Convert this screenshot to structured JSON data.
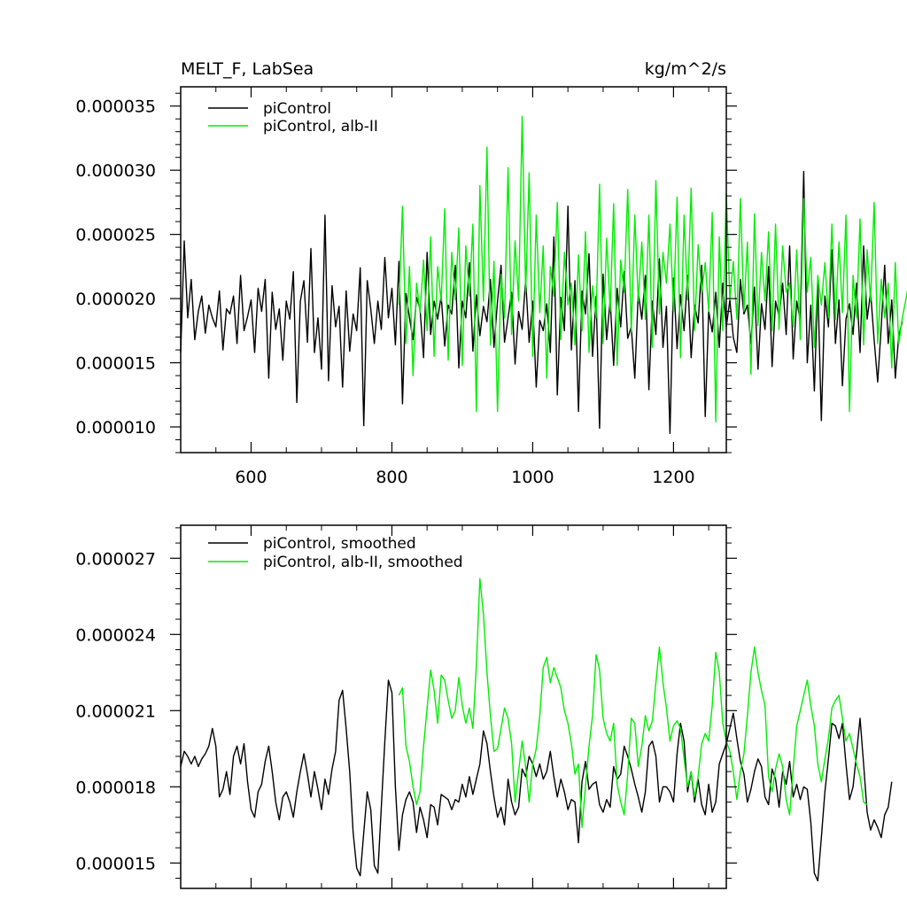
{
  "chart_data": [
    {
      "type": "line",
      "title": "MELT_F, LabSea",
      "units": "kg/m^2/s",
      "xlim": [
        500,
        1275
      ],
      "ylim": [
        8e-06,
        3.65e-05
      ],
      "xticks": [
        600,
        800,
        1000,
        1200
      ],
      "xtick_labels": [
        "600",
        "800",
        "1000",
        "1200"
      ],
      "yticks": [
        1e-05,
        1.5e-05,
        2e-05,
        2.5e-05,
        3e-05,
        3.5e-05
      ],
      "ytick_labels": [
        "0.000010",
        "0.000015",
        "0.000020",
        "0.000025",
        "0.000030",
        "0.000035"
      ],
      "grid": false,
      "legend": "top-left",
      "series": [
        {
          "name": "piControl",
          "color": "#000000",
          "x_start": 500,
          "step": 5,
          "values": [
            1.58e-05,
            2.45e-05,
            1.85e-05,
            2.15e-05,
            1.68e-05,
            1.9e-05,
            2.02e-05,
            1.73e-05,
            1.95e-05,
            1.85e-05,
            1.78e-05,
            2.06e-05,
            1.6e-05,
            1.92e-05,
            1.88e-05,
            2.02e-05,
            1.65e-05,
            2.18e-05,
            1.75e-05,
            1.86e-05,
            1.99e-05,
            1.58e-05,
            2.08e-05,
            1.9e-05,
            2.15e-05,
            1.38e-05,
            2.05e-05,
            1.76e-05,
            1.92e-05,
            1.52e-05,
            1.98e-05,
            1.84e-05,
            2.21e-05,
            1.19e-05,
            1.98e-05,
            2.14e-05,
            1.66e-05,
            2.39e-05,
            1.58e-05,
            1.85e-05,
            1.45e-05,
            2.65e-05,
            1.36e-05,
            2.1e-05,
            1.78e-05,
            1.94e-05,
            1.31e-05,
            2.06e-05,
            1.59e-05,
            1.88e-05,
            1.75e-05,
            2.24e-05,
            1.01e-05,
            2.14e-05,
            1.92e-05,
            1.65e-05,
            1.98e-05,
            1.76e-05,
            2.32e-05,
            1.85e-05,
            2.08e-05,
            1.64e-05,
            2.29e-05,
            1.18e-05,
            2.04e-05,
            1.85e-05,
            1.68e-05,
            2.01e-05,
            1.92e-05,
            1.54e-05,
            2.36e-05,
            1.72e-05,
            1.98e-05,
            1.84e-05,
            2.02e-05,
            1.63e-05,
            1.95e-05,
            1.88e-05,
            2.26e-05,
            1.46e-05,
            1.98e-05,
            1.85e-05,
            2.28e-05,
            1.59e-05,
            2.03e-05,
            1.71e-05,
            1.94e-05,
            1.82e-05,
            2.15e-05,
            1.62e-05,
            1.98e-05,
            2.26e-05,
            1.66e-05,
            1.85e-05,
            2.05e-05,
            1.49e-05,
            1.9e-05,
            1.76e-05,
            2.15e-05,
            1.66e-05,
            1.98e-05,
            1.31e-05,
            1.83e-05,
            1.75e-05,
            1.96e-05,
            1.58e-05,
            2.48e-05,
            1.25e-05,
            2.01e-05,
            1.75e-05,
            2.72e-05,
            1.6e-05,
            2.14e-05,
            1.12e-05,
            2.06e-05,
            1.88e-05,
            2.35e-05,
            1.55e-05,
            2.02e-05,
            9.9e-06,
            2.19e-05,
            1.68e-05,
            1.99e-05,
            1.48e-05,
            2.08e-05,
            1.78e-05,
            2.21e-05,
            1.69e-05,
            1.78e-05,
            1.38e-05,
            2.05e-05,
            1.84e-05,
            2.18e-05,
            1.29e-05,
            1.98e-05,
            1.72e-05,
            2.31e-05,
            1.62e-05,
            1.94e-05,
            9.5e-06,
            2.16e-05,
            1.61e-05,
            2.03e-05,
            1.75e-05,
            2.18e-05,
            1.54e-05,
            1.95e-05,
            1.81e-05,
            2.26e-05,
            1.08e-05,
            1.9e-05,
            1.74e-05,
            2.05e-05,
            1.62e-05,
            2.12e-05,
            1.78e-05,
            1.99e-05,
            1.7e-05,
            1.58e-05,
            2.15e-05,
            1.88e-05,
            1.95e-05,
            1.65e-05,
            2.09e-05,
            1.45e-05,
            1.96e-05,
            1.76e-05,
            2.25e-05,
            1.47e-05,
            1.98e-05,
            1.86e-05,
            2.12e-05,
            1.72e-05,
            2.41e-05,
            1.53e-05,
            1.98e-05,
            1.83e-05,
            2.99e-05,
            1.5e-05,
            1.95e-05,
            1.28e-05,
            2.12e-05,
            1.05e-05,
            2.02e-05,
            1.78e-05,
            2.38e-05,
            1.65e-05,
            1.99e-05,
            1.32e-05,
            1.84e-05,
            1.96e-05,
            1.72e-05,
            2.12e-05,
            1.58e-05,
            2.41e-05,
            1.84e-05,
            2.05e-05,
            1.68e-05,
            1.35e-05,
            1.78e-05,
            2.26e-05,
            1.65e-05,
            1.99e-05,
            1.38e-05,
            1.71e-05,
            1.82e-05
          ]
        },
        {
          "name": "piControl, alb-II",
          "color": "#00ee00",
          "x_start": 810,
          "step": 5,
          "values": [
            1.95e-05,
            2.72e-05,
            1.65e-05,
            2.25e-05,
            1.4e-05,
            2.12e-05,
            1.89e-05,
            2.3e-05,
            1.75e-05,
            2.48e-05,
            1.55e-05,
            2.25e-05,
            1.98e-05,
            2.7e-05,
            1.52e-05,
            2.36e-05,
            1.99e-05,
            2.55e-05,
            1.48e-05,
            2.41e-05,
            2.02e-05,
            2.58e-05,
            1.12e-05,
            2.88e-05,
            1.98e-05,
            3.18e-05,
            1.64e-05,
            2.29e-05,
            1.12e-05,
            2.19e-05,
            1.85e-05,
            3.02e-05,
            1.72e-05,
            2.45e-05,
            1.98e-05,
            3.42e-05,
            2.05e-05,
            2.98e-05,
            1.55e-05,
            2.65e-05,
            1.89e-05,
            2.41e-05,
            1.38e-05,
            2.25e-05,
            2.02e-05,
            2.75e-05,
            1.68e-05,
            2.36e-05,
            1.95e-05,
            2.12e-05,
            1.64e-05,
            2.34e-05,
            1.75e-05,
            2.52e-05,
            1.58e-05,
            2.1e-05,
            1.85e-05,
            2.89e-05,
            1.65e-05,
            2.47e-05,
            1.9e-05,
            2.74e-05,
            1.48e-05,
            2.3e-05,
            2.05e-05,
            2.85e-05,
            1.74e-05,
            2.65e-05,
            1.98e-05,
            2.44e-05,
            1.84e-05,
            2.65e-05,
            1.62e-05,
            2.92e-05,
            1.88e-05,
            2.36e-05,
            2.12e-05,
            2.58e-05,
            1.9e-05,
            2.79e-05,
            1.54e-05,
            2.65e-05,
            1.99e-05,
            2.86e-05,
            1.75e-05,
            2.42e-05,
            2.05e-05,
            2.28e-05,
            1.9e-05,
            2.67e-05,
            1.04e-05,
            2.48e-05,
            1.75e-05,
            2.82e-05,
            1.99e-05,
            2.29e-05,
            1.84e-05,
            2.78e-05,
            1.9e-05,
            2.44e-05,
            1.41e-05,
            2.66e-05,
            1.79e-05,
            2.36e-05,
            1.98e-05,
            2.52e-05,
            1.75e-05,
            2.58e-05,
            1.76e-05,
            2.41e-05,
            2.05e-05,
            2.12e-05,
            1.78e-05,
            2.38e-05,
            1.68e-05,
            2.78e-05,
            2.05e-05,
            2.32e-05,
            1.62e-05,
            2.18e-05,
            1.95e-05,
            2.28e-05,
            1.85e-05,
            2.58e-05,
            1.84e-05,
            2.44e-05,
            1.89e-05,
            2.65e-05,
            1.12e-05,
            2.18e-05,
            1.85e-05,
            2.62e-05,
            1.64e-05,
            2.38e-05,
            1.98e-05,
            2.75e-05,
            1.65e-05,
            2.15e-05,
            1.85e-05,
            2.12e-05,
            1.46e-05,
            2.28e-05,
            1.65e-05,
            1.85e-05,
            1.99e-05,
            2.15e-05,
            1.65e-05,
            2.05e-05,
            1.62e-05,
            2.38e-05,
            1.7e-05,
            2.12e-05,
            1.98e-05,
            2.2e-05,
            1.84e-05,
            1.99e-05,
            1.8e-05,
            2.05e-05,
            1.58e-05,
            2.15e-05,
            1.35e-05,
            2.12e-05,
            1.72e-05
          ]
        }
      ]
    },
    {
      "type": "line",
      "xlim": [
        500,
        1275
      ],
      "ylim": [
        1.4e-05,
        2.83e-05
      ],
      "xticks": [
        600,
        800,
        1000,
        1200
      ],
      "yticks": [
        1.5e-05,
        1.8e-05,
        2.1e-05,
        2.4e-05,
        2.7e-05
      ],
      "ytick_labels": [
        "0.000015",
        "0.000018",
        "0.000021",
        "0.000024",
        "0.000027"
      ],
      "grid": false,
      "legend": "top-left",
      "series": [
        {
          "name": "piControl, smoothed",
          "color": "#000000",
          "x_start": 500,
          "step": 5,
          "values": [
            1.88e-05,
            1.94e-05,
            1.92e-05,
            1.89e-05,
            1.92e-05,
            1.88e-05,
            1.91e-05,
            1.93e-05,
            1.96e-05,
            2.03e-05,
            1.96e-05,
            1.76e-05,
            1.79e-05,
            1.86e-05,
            1.77e-05,
            1.92e-05,
            1.96e-05,
            1.89e-05,
            1.97e-05,
            1.82e-05,
            1.71e-05,
            1.68e-05,
            1.78e-05,
            1.81e-05,
            1.9e-05,
            1.96e-05,
            1.86e-05,
            1.74e-05,
            1.67e-05,
            1.76e-05,
            1.78e-05,
            1.74e-05,
            1.68e-05,
            1.78e-05,
            1.86e-05,
            1.93e-05,
            1.85e-05,
            1.76e-05,
            1.86e-05,
            1.79e-05,
            1.71e-05,
            1.83e-05,
            1.77e-05,
            1.87e-05,
            1.94e-05,
            2.14e-05,
            2.18e-05,
            2.03e-05,
            1.86e-05,
            1.62e-05,
            1.48e-05,
            1.45e-05,
            1.62e-05,
            1.78e-05,
            1.71e-05,
            1.49e-05,
            1.46e-05,
            1.72e-05,
            1.98e-05,
            2.22e-05,
            2.17e-05,
            1.8e-05,
            1.55e-05,
            1.69e-05,
            1.75e-05,
            1.78e-05,
            1.74e-05,
            1.62e-05,
            1.72e-05,
            1.67e-05,
            1.6e-05,
            1.73e-05,
            1.72e-05,
            1.65e-05,
            1.77e-05,
            1.76e-05,
            1.75e-05,
            1.71e-05,
            1.75e-05,
            1.74e-05,
            1.81e-05,
            1.76e-05,
            1.84e-05,
            1.77e-05,
            1.83e-05,
            1.89e-05,
            2.02e-05,
            1.97e-05,
            1.86e-05,
            1.76e-05,
            1.68e-05,
            1.72e-05,
            1.65e-05,
            1.83e-05,
            1.74e-05,
            1.69e-05,
            1.72e-05,
            1.87e-05,
            1.84e-05,
            1.92e-05,
            1.89e-05,
            1.84e-05,
            1.89e-05,
            1.83e-05,
            1.86e-05,
            1.94e-05,
            1.84e-05,
            1.76e-05,
            1.83e-05,
            1.78e-05,
            1.71e-05,
            1.75e-05,
            1.74e-05,
            1.58e-05,
            1.82e-05,
            1.9e-05,
            1.79e-05,
            1.81e-05,
            1.82e-05,
            1.73e-05,
            1.7e-05,
            1.75e-05,
            1.72e-05,
            1.88e-05,
            1.83e-05,
            1.85e-05,
            1.96e-05,
            1.92e-05,
            1.87e-05,
            1.81e-05,
            1.76e-05,
            1.7e-05,
            1.78e-05,
            1.96e-05,
            1.98e-05,
            1.92e-05,
            1.74e-05,
            1.8e-05,
            1.8e-05,
            1.78e-05,
            1.74e-05,
            1.93e-05,
            2.05e-05,
            1.98e-05,
            1.78e-05,
            1.86e-05,
            1.74e-05,
            1.83e-05,
            1.73e-05,
            1.69e-05,
            1.81e-05,
            1.7e-05,
            1.74e-05,
            1.89e-05,
            1.93e-05,
            1.97e-05,
            2.03e-05,
            2.09e-05,
            1.99e-05,
            1.9e-05,
            1.85e-05,
            1.74e-05,
            1.79e-05,
            1.86e-05,
            1.91e-05,
            1.88e-05,
            1.76e-05,
            1.73e-05,
            1.87e-05,
            1.83e-05,
            1.72e-05,
            1.86e-05,
            1.81e-05,
            1.9e-05,
            1.76e-05,
            1.81e-05,
            1.75e-05,
            1.8e-05,
            1.79e-05,
            1.66e-05,
            1.46e-05,
            1.43e-05,
            1.6e-05,
            1.78e-05,
            1.91e-05,
            2.05e-05,
            2.04e-05,
            1.99e-05,
            2.05e-05,
            1.89e-05,
            1.75e-05,
            1.8e-05,
            1.93e-05,
            2.07e-05,
            1.89e-05,
            1.7e-05,
            1.63e-05,
            1.67e-05,
            1.64e-05,
            1.6e-05,
            1.69e-05,
            1.72e-05,
            1.82e-05
          ]
        },
        {
          "name": "piControl, alb-II, smoothed",
          "color": "#00ee00",
          "x_start": 810,
          "step": 5,
          "values": [
            2.16e-05,
            2.19e-05,
            1.96e-05,
            1.9e-05,
            1.8e-05,
            1.73e-05,
            1.78e-05,
            1.96e-05,
            2.11e-05,
            2.26e-05,
            2.18e-05,
            2.05e-05,
            2.24e-05,
            2.22e-05,
            2.14e-05,
            2.07e-05,
            2.1e-05,
            2.23e-05,
            2.12e-05,
            2.05e-05,
            2.11e-05,
            2.03e-05,
            2.28e-05,
            2.62e-05,
            2.48e-05,
            2.25e-05,
            2.08e-05,
            1.94e-05,
            1.95e-05,
            2.03e-05,
            2.11e-05,
            2.07e-05,
            1.97e-05,
            1.74e-05,
            1.86e-05,
            1.98e-05,
            1.88e-05,
            1.74e-05,
            1.89e-05,
            1.95e-05,
            2.08e-05,
            2.27e-05,
            2.31e-05,
            2.21e-05,
            2.27e-05,
            2.23e-05,
            2.19e-05,
            2.1e-05,
            2.05e-05,
            1.97e-05,
            1.85e-05,
            1.89e-05,
            1.64e-05,
            1.8e-05,
            1.96e-05,
            2.08e-05,
            2.32e-05,
            2.26e-05,
            2.07e-05,
            2.01e-05,
            1.98e-05,
            2.05e-05,
            1.81e-05,
            1.74e-05,
            1.69e-05,
            1.85e-05,
            2.07e-05,
            2.05e-05,
            1.88e-05,
            1.96e-05,
            2.08e-05,
            2.02e-05,
            2.06e-05,
            2.21e-05,
            2.35e-05,
            2.21e-05,
            2.11e-05,
            1.98e-05,
            2.04e-05,
            2.06e-05,
            2.03e-05,
            1.91e-05,
            1.8e-05,
            1.86e-05,
            1.76e-05,
            1.84e-05,
            1.97e-05,
            2.01e-05,
            1.98e-05,
            2.12e-05,
            2.33e-05,
            2.25e-05,
            2.05e-05,
            1.98e-05,
            1.94e-05,
            1.86e-05,
            1.75e-05,
            1.86e-05,
            1.93e-05,
            2.08e-05,
            2.25e-05,
            2.35e-05,
            2.25e-05,
            2.18e-05,
            2.12e-05,
            1.84e-05,
            1.78e-05,
            1.87e-05,
            1.93e-05,
            1.88e-05,
            1.75e-05,
            1.69e-05,
            1.87e-05,
            2.04e-05,
            2.1e-05,
            2.16e-05,
            2.22e-05,
            2.12e-05,
            2.04e-05,
            1.89e-05,
            1.82e-05,
            1.91e-05,
            1.99e-05,
            2.11e-05,
            2.14e-05,
            2.16e-05,
            2.07e-05,
            1.98e-05,
            2.01e-05,
            1.95e-05,
            1.89e-05,
            1.84e-05,
            1.74e-05,
            1.73e-05
          ]
        }
      ]
    }
  ]
}
